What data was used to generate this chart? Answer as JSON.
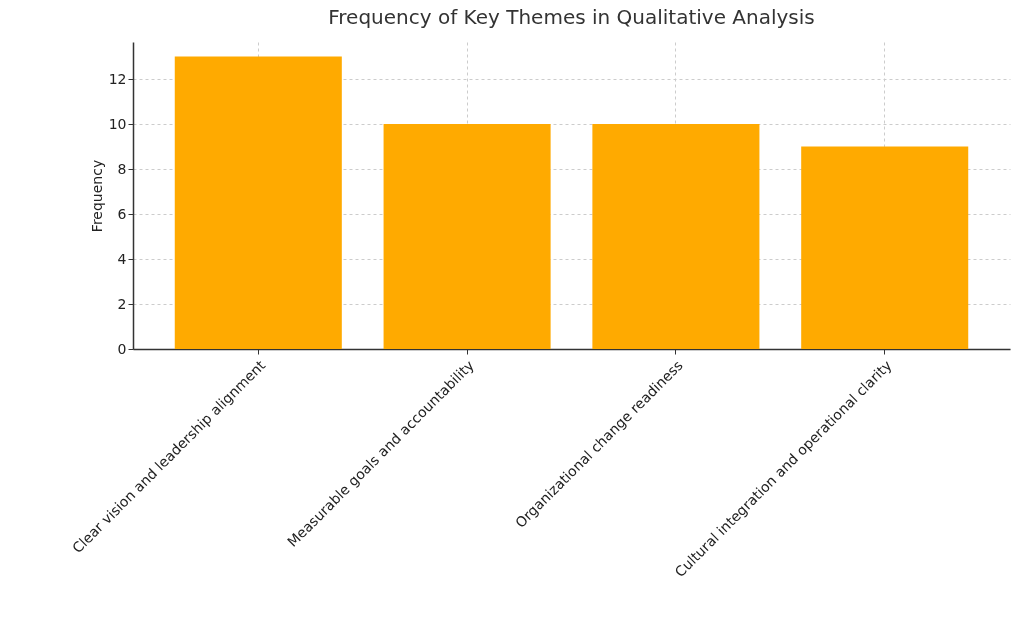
{
  "chart_data": {
    "type": "bar",
    "title": "Frequency of Key Themes in Qualitative Analysis",
    "ylabel": "Frequency",
    "categories": [
      "Clear vision and leadership alignment",
      "Measurable goals and accountability",
      "Organizational change readiness",
      "Cultural integration and operational clarity"
    ],
    "values": [
      13,
      10,
      10,
      9
    ],
    "color": "#ffaa00",
    "ylim": [
      0,
      13.65
    ],
    "yticks": [
      0,
      2,
      4,
      6,
      8,
      10,
      12
    ],
    "grid": true
  }
}
